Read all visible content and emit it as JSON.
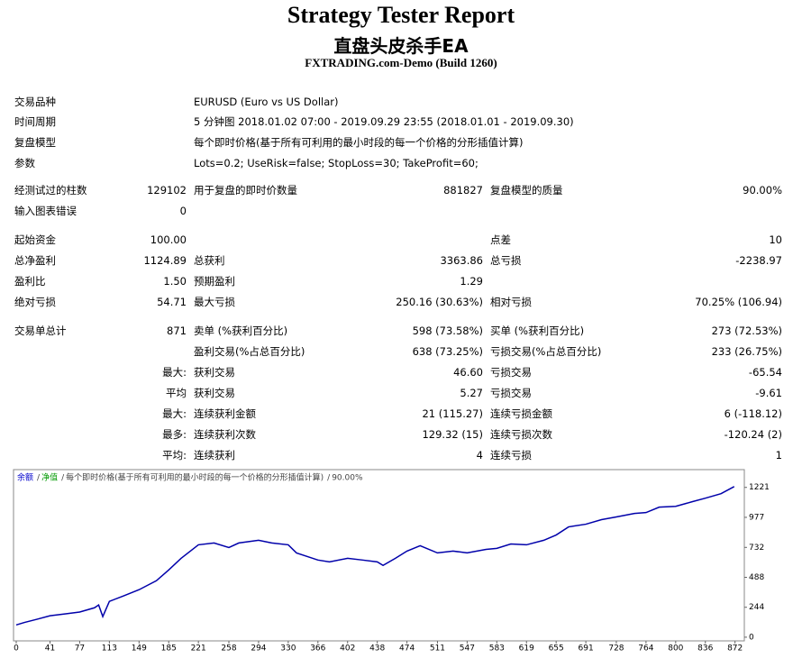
{
  "header": {
    "title": "Strategy Tester Report",
    "ea_name": "直盘头皮杀手EA",
    "server": "FXTRADING.com-Demo (Build 1260)"
  },
  "info": [
    [
      "交易品种",
      "EURUSD (Euro vs US Dollar)"
    ],
    [
      "时间周期",
      "5 分钟图 2018.01.02 07:00 - 2019.09.29 23:55 (2018.01.01 - 2019.09.30)"
    ],
    [
      "复盘模型",
      "每个即时价格(基于所有可利用的最小时段的每一个价格的分形插值计算)"
    ],
    [
      "参数",
      "Lots=0.2; UseRisk=false; StopLoss=30; TakeProfit=60;"
    ]
  ],
  "table": {
    "rows": [
      [
        "经测试过的柱数",
        "129102",
        "用于复盘的即时价数量",
        "881827",
        "复盘模型的质量",
        "90.00%"
      ],
      [
        "输入图表错误",
        "0",
        null,
        null,
        null,
        null
      ],
      [
        "起始资金",
        "100.00",
        null,
        null,
        "点差",
        "10"
      ],
      [
        "总净盈利",
        "1124.89",
        "总获利",
        "3363.86",
        "总亏损",
        "-2238.97"
      ],
      [
        "盈利比",
        "1.50",
        "预期盈利",
        "1.29",
        null,
        null
      ],
      [
        "绝对亏损",
        "54.71",
        "最大亏损",
        "250.16 (30.63%)",
        "相对亏损",
        "70.25% (106.94)"
      ],
      [
        "交易单总计",
        "871",
        "卖单 (%获利百分比)",
        "598 (73.58%)",
        "买单 (%获利百分比)",
        "273 (72.53%)"
      ],
      [
        null,
        null,
        "盈利交易(%占总百分比)",
        "638 (73.25%)",
        "亏损交易(%占总百分比)",
        "233 (26.75%)"
      ],
      [
        null,
        "最大:",
        "获利交易",
        "46.60",
        "亏损交易",
        "-65.54"
      ],
      [
        null,
        "平均",
        "获利交易",
        "5.27",
        "亏损交易",
        "-9.61"
      ],
      [
        null,
        "最大:",
        "连续获利金额",
        "21 (115.27)",
        "连续亏损金额",
        "6 (-118.12)"
      ],
      [
        null,
        "最多:",
        "连续获利次数",
        "129.32 (15)",
        "连续亏损次数",
        "-120.24 (2)"
      ],
      [
        null,
        "平均:",
        "连续获利",
        "4",
        "连续亏损",
        "1"
      ]
    ]
  },
  "chart_data": {
    "type": "line",
    "legend": [
      {
        "text": "余额",
        "color": "#0000cc"
      },
      {
        "text": "净值",
        "color": "#009900"
      },
      {
        "text": "每个即时价格(基于所有可利用的最小时段的每一个价格的分形插值计算)",
        "color": "#444444"
      },
      {
        "text": "90.00%",
        "color": "#444444"
      }
    ],
    "legend_separator": "/",
    "x": [
      0,
      10,
      25,
      41,
      60,
      77,
      95,
      100,
      105,
      113,
      130,
      149,
      170,
      185,
      200,
      221,
      240,
      258,
      270,
      294,
      310,
      330,
      340,
      366,
      380,
      402,
      420,
      438,
      445,
      460,
      474,
      490,
      511,
      530,
      547,
      570,
      583,
      600,
      619,
      640,
      655,
      670,
      691,
      710,
      728,
      750,
      764,
      780,
      800,
      820,
      836,
      855,
      871
    ],
    "series": [
      {
        "name": "余额",
        "color": "#0000aa",
        "values": [
          100,
          120,
          146,
          175,
          190,
          205,
          240,
          263,
          168,
          292,
          336,
          387,
          460,
          548,
          643,
          753,
          768,
          731,
          768,
          790,
          768,
          753,
          687,
          629,
          614,
          643,
          629,
          614,
          585,
          643,
          702,
          746,
          687,
          702,
          687,
          716,
          724,
          760,
          753,
          790,
          833,
          899,
          921,
          958,
          980,
          1009,
          1016,
          1060,
          1067,
          1104,
          1133,
          1170,
          1228
        ]
      }
    ],
    "xlim": [
      0,
      880
    ],
    "ylim": [
      -30,
      1366
    ],
    "xticks": [
      0,
      41,
      77,
      113,
      149,
      185,
      221,
      258,
      294,
      330,
      366,
      402,
      438,
      474,
      511,
      547,
      583,
      619,
      655,
      691,
      728,
      764,
      800,
      836,
      872
    ],
    "yticks": [
      0,
      244,
      488,
      732,
      977,
      1221
    ]
  }
}
